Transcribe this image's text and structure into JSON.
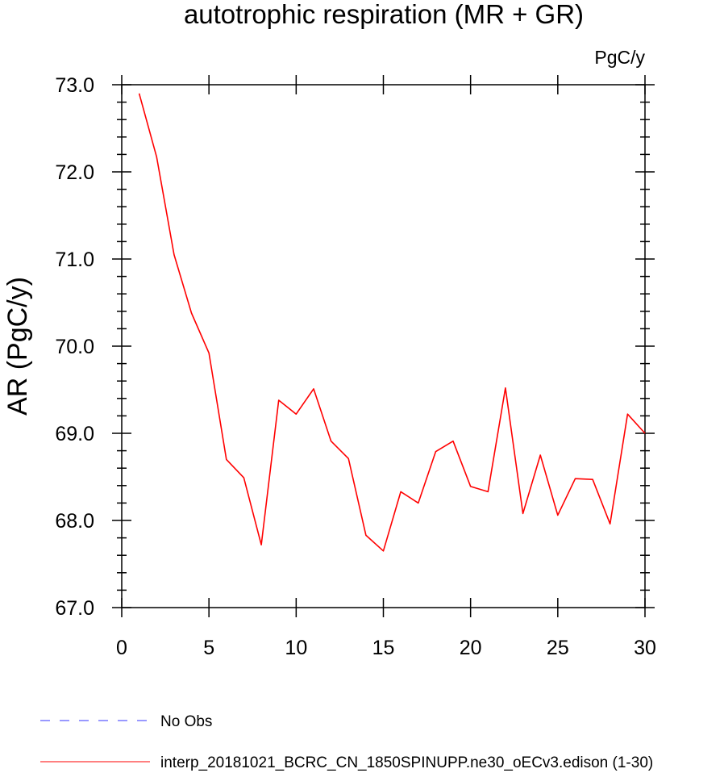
{
  "chart_data": {
    "type": "line",
    "title": "autotrophic respiration (MR + GR)",
    "units_label": "PgC/y",
    "xlabel": "",
    "ylabel": "AR  (PgC/y)",
    "xlim": [
      0,
      30
    ],
    "ylim": [
      67.0,
      73.0
    ],
    "xticks": [
      0,
      5,
      10,
      15,
      20,
      25,
      30
    ],
    "xtick_labels": [
      "0",
      "5",
      "10",
      "15",
      "20",
      "25",
      "30"
    ],
    "yticks": [
      67.0,
      68.0,
      69.0,
      70.0,
      71.0,
      72.0,
      73.0
    ],
    "ytick_labels": [
      "67.0",
      "68.0",
      "69.0",
      "70.0",
      "71.0",
      "72.0",
      "73.0"
    ],
    "grid": false,
    "legend_position": "bottom-left",
    "series": [
      {
        "name": "interp_20181021_BCRC_CN_1850SPINUPP.ne30_oECv3.edison (1-30)",
        "color": "#ff0000",
        "dash": "solid",
        "x": [
          1,
          2,
          3,
          4,
          5,
          6,
          7,
          8,
          9,
          10,
          11,
          12,
          13,
          14,
          15,
          16,
          17,
          18,
          19,
          20,
          21,
          22,
          23,
          24,
          25,
          26,
          27,
          28,
          29,
          30
        ],
        "y": [
          72.9,
          72.17,
          71.05,
          70.38,
          69.92,
          68.7,
          68.49,
          67.72,
          69.38,
          69.22,
          69.51,
          68.91,
          68.71,
          67.83,
          67.65,
          68.33,
          68.2,
          68.79,
          68.91,
          68.39,
          68.33,
          69.52,
          68.08,
          68.75,
          68.06,
          68.48,
          68.47,
          67.96,
          69.22,
          69.0
        ]
      }
    ],
    "legend": [
      {
        "label": "No Obs",
        "color": "#3333ff",
        "dash": "dashed"
      },
      {
        "label": "interp_20181021_BCRC_CN_1850SPINUPP.ne30_oECv3.edison (1-30)",
        "color": "#ff0000",
        "dash": "solid"
      }
    ]
  }
}
